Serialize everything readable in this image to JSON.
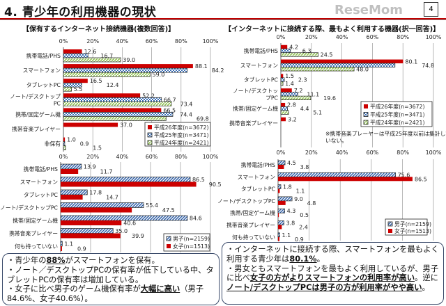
{
  "header": {
    "title": "4. 青少年の利用機器の現状",
    "page_number": "4"
  },
  "chart_titles": [
    "【保有するインターネット接続機器(複数回答)】",
    "【インターネットに接続する際、最もよく利用する機器(択一回答)】"
  ],
  "chart_data": [
    {
      "type": "bar",
      "orientation": "horizontal",
      "title": "【保有するインターネット接続機器(複数回答)】",
      "categories": [
        "携帯電話/PHS",
        "スマートフォン",
        "タブレットPC",
        "ノート/デスクトップ\nPC",
        "携帯/固定ゲーム機",
        "携帯音楽プレイヤー",
        "非保有"
      ],
      "series": [
        {
          "name": "平成26年度(n=3672)",
          "values": [
            12.6,
            88.1,
            16.5,
            52.2,
            66.5,
            37.0,
            1.0
          ],
          "color": "#cc0000",
          "pattern": "solid"
        },
        {
          "name": "平成25年度(n=3471)",
          "values": [
            16.7,
            84.2,
            12.4,
            66.7,
            74.4,
            null,
            0.9
          ],
          "color": "#3b6fb6",
          "pattern": "dots"
        },
        {
          "name": "平成24年度(n=2421)",
          "values": [
            39.0,
            59.0,
            5.5,
            73.4,
            69.8,
            null,
            1.5
          ],
          "color": "#8fc050",
          "pattern": "diagonal"
        }
      ],
      "xlim": [
        0,
        100
      ],
      "ticks": [
        "0%",
        "20%",
        "40%",
        "60%",
        "80%",
        "100%"
      ],
      "grid": true,
      "legend": "bottom-right"
    },
    {
      "type": "bar",
      "orientation": "horizontal",
      "title": "【インターネットに接続する際、最もよく利用する機器(択一回答)】",
      "categories": [
        "携帯電話/PHS",
        "スマートフォン",
        "タブレットPC",
        "ノート/デスクトッ\nプPC",
        "携帯/固定ゲーム機",
        "携帯音楽プレイヤー"
      ],
      "series": [
        {
          "name": "平成26年度(n=3672)",
          "values": [
            4.2,
            80.1,
            1.5,
            7.2,
            2.8,
            3.2
          ],
          "color": "#cc0000",
          "pattern": "solid"
        },
        {
          "name": "平成25年度(n=3471)",
          "values": [
            6.3,
            74.8,
            2.3,
            11.1,
            4.4,
            null
          ],
          "color": "#3b6fb6",
          "pattern": "dots"
        },
        {
          "name": "平成24年度(n=2421)",
          "values": [
            24.5,
            48.0,
            1.4,
            19.6,
            5.1,
            null
          ],
          "color": "#8fc050",
          "pattern": "diagonal"
        }
      ],
      "xlim": [
        0,
        100
      ],
      "ticks": [
        "0%",
        "20%",
        "40%",
        "60%",
        "80%",
        "100%"
      ],
      "grid": true,
      "legend": "right",
      "note": "※携帯音楽プレーヤーは平成25年度以前は集計していない。"
    },
    {
      "type": "bar",
      "orientation": "horizontal",
      "categories": [
        "携帯電話/PHS",
        "スマートフォン",
        "タブレットPC",
        "ノート/デスクトップPC",
        "携帯/固定ゲーム機",
        "携帯音楽プレイヤー",
        "何も持っていない"
      ],
      "series": [
        {
          "name": "男子(n=2159)",
          "values": [
            13.9,
            86.5,
            17.8,
            55.4,
            84.6,
            35.0,
            1.1
          ],
          "color": "#2e5fa8",
          "pattern": "stripes"
        },
        {
          "name": "女子(n=1513)",
          "values": [
            11.7,
            90.5,
            14.7,
            47.5,
            40.6,
            39.9,
            0.9
          ],
          "color": "#cc0000",
          "pattern": "solid"
        }
      ],
      "xlim": [
        0,
        100
      ],
      "grid": true,
      "legend": "bottom-right"
    },
    {
      "type": "bar",
      "orientation": "horizontal",
      "categories": [
        "携帯電話/PHS",
        "スマートフォン",
        "タブレットPC",
        "ノート/デスクトップPC",
        "携帯/固定ゲーム機",
        "携帯音楽プレイヤー",
        "何も持っていない"
      ],
      "series": [
        {
          "name": "男子(n=2159)",
          "values": [
            4.5,
            75.6,
            1.8,
            9.0,
            4.3,
            3.8,
            1.1
          ],
          "color": "#2e5fa8",
          "pattern": "stripes"
        },
        {
          "name": "女子(n=1513)",
          "values": [
            3.8,
            86.5,
            1.1,
            4.8,
            0.5,
            2.4,
            0.9
          ],
          "color": "#cc0000",
          "pattern": "solid"
        }
      ],
      "xlim": [
        0,
        100
      ],
      "grid": true,
      "legend": "bottom-right"
    }
  ],
  "summary_left": [
    [
      {
        "t": "・青少年の"
      },
      {
        "t": "88%",
        "b": true
      },
      {
        "t": "がスマートフォンを保有。"
      }
    ],
    [
      {
        "t": "・ノート／デスクトップPCの保有率が低下している中、タブレットPCの保有率は増加している。"
      }
    ],
    [
      {
        "t": "・女子に比べ男子のゲーム機保有率が"
      },
      {
        "t": "大幅に高い",
        "b": true
      },
      {
        "t": "（男子84.6%、女子40.6%）。"
      }
    ]
  ],
  "summary_right": [
    [
      {
        "t": "・インターネットに接続する際、スマートフォンを最もよく利用する青少年は"
      },
      {
        "t": "80.1%",
        "b": true
      },
      {
        "t": "。"
      }
    ],
    [
      {
        "t": "・男女ともスマートフォンを最もよく利用しているが、男子に比べ"
      },
      {
        "t": "女子の方がよりスマートフォンの利用率が高い",
        "b": true
      },
      {
        "t": "。逆に"
      },
      {
        "t": "ノート/デスクトップPCは男子の方が利用率がやや高い",
        "b": true
      },
      {
        "t": "。"
      }
    ]
  ],
  "watermark": "ReseMom"
}
